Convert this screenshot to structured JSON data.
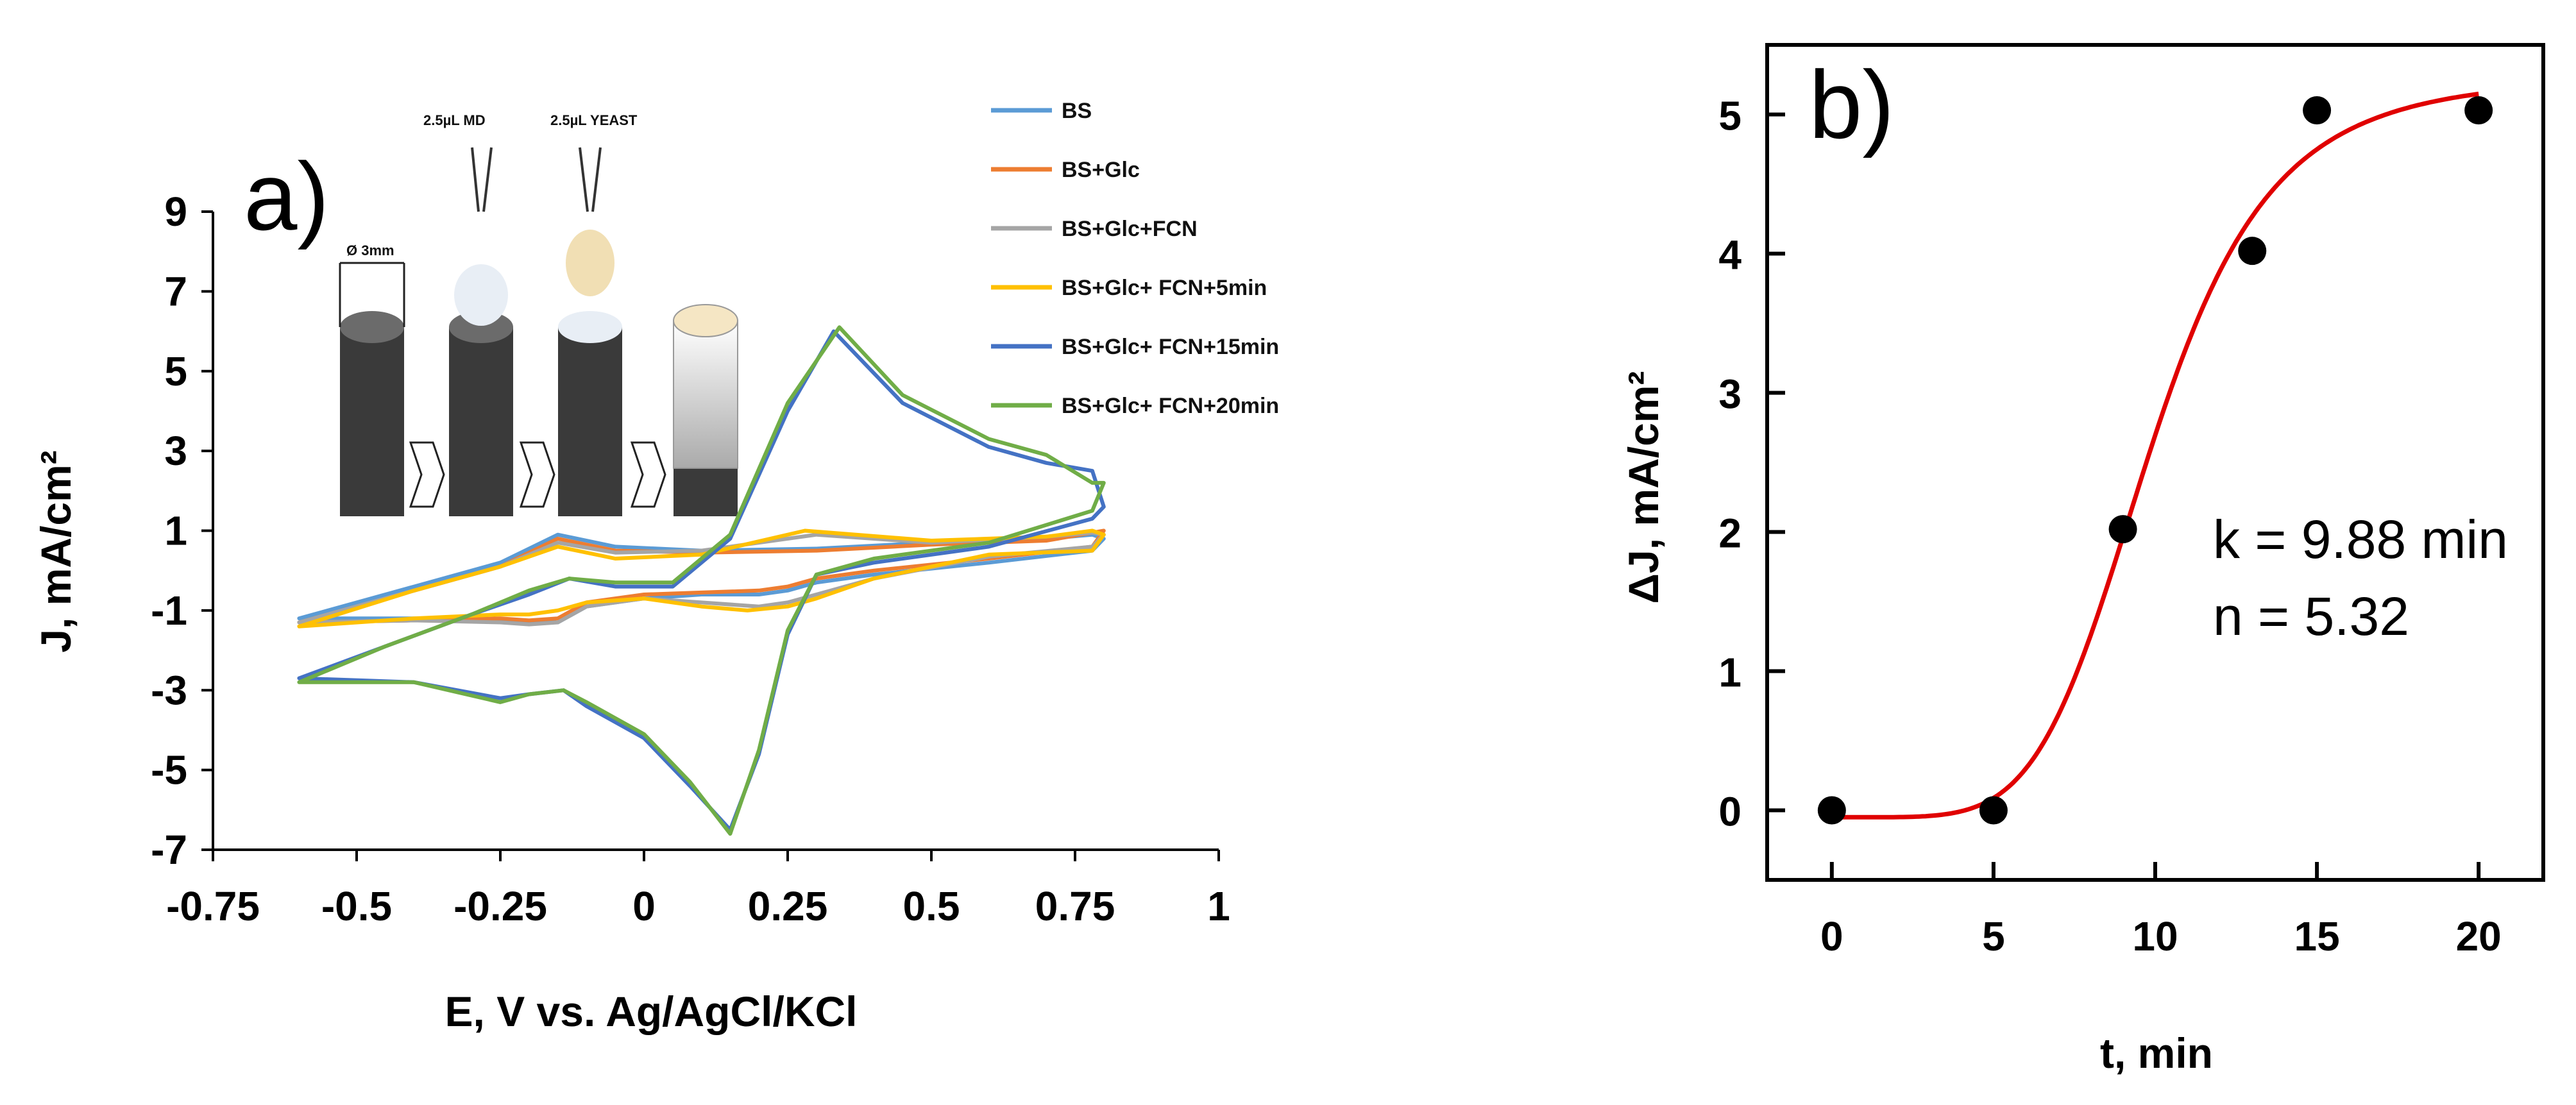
{
  "chart_data": [
    {
      "type": "line",
      "panel_label": "a)",
      "xlabel": "E, V vs. Ag/AgCl/KCl",
      "ylabel": "J, mA/cm²",
      "xlim": [
        -0.75,
        1
      ],
      "ylim": [
        -7,
        9
      ],
      "x_ticks": [
        "-0.75",
        "-0.5",
        "-0.25",
        "0",
        "0.25",
        "0.5",
        "0.75",
        "1"
      ],
      "y_ticks": [
        "9",
        "7",
        "5",
        "3",
        "1",
        "-1",
        "-3",
        "-5",
        "-7"
      ],
      "legend_position": "top-right",
      "series": [
        {
          "name": "BS",
          "color": "#5b9bd5",
          "x": [
            -0.6,
            -0.4,
            -0.25,
            -0.15,
            -0.05,
            0.1,
            0.3,
            0.5,
            0.7,
            0.78,
            0.8,
            0.78,
            0.6,
            0.4,
            0.3,
            0.25,
            0.2,
            0.1,
            0,
            -0.1,
            -0.15,
            -0.2,
            -0.25,
            -0.4,
            -0.6
          ],
          "y": [
            -1.2,
            -0.4,
            0.2,
            0.9,
            0.6,
            0.5,
            0.55,
            0.7,
            0.8,
            0.9,
            0.8,
            0.5,
            0.2,
            -0.1,
            -0.3,
            -0.5,
            -0.6,
            -0.6,
            -0.7,
            -0.9,
            -1.3,
            -1.3,
            -1.25,
            -1.2,
            -1.2
          ]
        },
        {
          "name": "BS+Glc",
          "color": "#ed7d31",
          "x": [
            -0.6,
            -0.4,
            -0.25,
            -0.15,
            -0.05,
            0.1,
            0.3,
            0.5,
            0.7,
            0.78,
            0.8,
            0.78,
            0.6,
            0.4,
            0.3,
            0.25,
            0.2,
            0.1,
            0,
            -0.1,
            -0.15,
            -0.2,
            -0.25,
            -0.4,
            -0.6
          ],
          "y": [
            -1.3,
            -0.5,
            0.1,
            0.8,
            0.5,
            0.45,
            0.5,
            0.65,
            0.75,
            0.95,
            1.0,
            0.6,
            0.3,
            0.0,
            -0.2,
            -0.4,
            -0.5,
            -0.55,
            -0.6,
            -0.8,
            -1.2,
            -1.25,
            -1.2,
            -1.25,
            -1.3
          ]
        },
        {
          "name": "BS+Glc+FCN",
          "color": "#a5a5a5",
          "x": [
            -0.6,
            -0.4,
            -0.25,
            -0.15,
            -0.05,
            0.1,
            0.3,
            0.5,
            0.7,
            0.78,
            0.8,
            0.78,
            0.6,
            0.4,
            0.3,
            0.25,
            0.2,
            0.1,
            0,
            -0.1,
            -0.15,
            -0.2,
            -0.25,
            -0.4,
            -0.6
          ],
          "y": [
            -1.3,
            -0.5,
            0.1,
            0.7,
            0.45,
            0.5,
            0.9,
            0.7,
            0.85,
            0.95,
            0.9,
            0.6,
            0.35,
            -0.2,
            -0.6,
            -0.8,
            -0.9,
            -0.8,
            -0.7,
            -0.9,
            -1.3,
            -1.35,
            -1.3,
            -1.25,
            -1.3
          ]
        },
        {
          "name": "BS+Glc+ FCN+5min",
          "color": "#ffc000",
          "x": [
            -0.6,
            -0.4,
            -0.25,
            -0.15,
            -0.05,
            0.1,
            0.28,
            0.5,
            0.7,
            0.78,
            0.8,
            0.78,
            0.6,
            0.4,
            0.3,
            0.25,
            0.18,
            0.1,
            0,
            -0.1,
            -0.15,
            -0.2,
            -0.25,
            -0.4,
            -0.6
          ],
          "y": [
            -1.4,
            -0.5,
            0.1,
            0.6,
            0.3,
            0.4,
            1.0,
            0.75,
            0.85,
            1.0,
            0.9,
            0.5,
            0.4,
            -0.2,
            -0.7,
            -0.9,
            -1.0,
            -0.9,
            -0.7,
            -0.8,
            -1.0,
            -1.1,
            -1.1,
            -1.2,
            -1.4
          ]
        },
        {
          "name": "BS+Glc+ FCN+15min",
          "color": "#4472c4",
          "x": [
            -0.6,
            -0.45,
            -0.3,
            -0.2,
            -0.13,
            -0.05,
            0.05,
            0.15,
            0.25,
            0.33,
            0.45,
            0.6,
            0.7,
            0.78,
            0.8,
            0.78,
            0.6,
            0.4,
            0.3,
            0.25,
            0.2,
            0.15,
            0.08,
            0,
            -0.1,
            -0.14,
            -0.2,
            -0.25,
            -0.4,
            -0.6
          ],
          "y": [
            -2.7,
            -1.9,
            -1.1,
            -0.6,
            -0.2,
            -0.4,
            -0.4,
            0.8,
            4.0,
            6.0,
            4.2,
            3.1,
            2.7,
            2.5,
            1.6,
            1.3,
            0.6,
            0.2,
            -0.1,
            -1.6,
            -4.6,
            -6.5,
            -5.4,
            -4.2,
            -3.4,
            -3.0,
            -3.1,
            -3.2,
            -2.8,
            -2.7
          ]
        },
        {
          "name": "BS+Glc+ FCN+20min",
          "color": "#70ad47",
          "x": [
            -0.6,
            -0.45,
            -0.3,
            -0.2,
            -0.13,
            -0.05,
            0.05,
            0.15,
            0.25,
            0.34,
            0.45,
            0.6,
            0.7,
            0.78,
            0.8,
            0.78,
            0.6,
            0.4,
            0.3,
            0.25,
            0.2,
            0.15,
            0.08,
            0,
            -0.1,
            -0.14,
            -0.2,
            -0.25,
            -0.4,
            -0.6
          ],
          "y": [
            -2.8,
            -1.9,
            -1.1,
            -0.5,
            -0.2,
            -0.3,
            -0.3,
            0.9,
            4.2,
            6.1,
            4.4,
            3.3,
            2.9,
            2.2,
            2.2,
            1.5,
            0.7,
            0.3,
            -0.1,
            -1.5,
            -4.5,
            -6.6,
            -5.3,
            -4.1,
            -3.3,
            -3.0,
            -3.1,
            -3.3,
            -2.8,
            -2.8
          ]
        }
      ],
      "inset": {
        "labels": [
          "2.5µL MD",
          "2.5µL YEAST",
          "Ø 3mm"
        ]
      }
    },
    {
      "type": "scatter",
      "panel_label": "b)",
      "xlabel": "t, min",
      "ylabel": "ΔJ, mA/cm²",
      "xlim": [
        -2,
        22
      ],
      "ylim": [
        -0.5,
        5.5
      ],
      "x_ticks": [
        "0",
        "5",
        "10",
        "15",
        "20"
      ],
      "y_ticks": [
        "0",
        "1",
        "2",
        "3",
        "4",
        "5"
      ],
      "points": {
        "x": [
          0,
          5,
          9,
          13,
          15,
          20
        ],
        "y": [
          0,
          0,
          2.02,
          4.02,
          5.03,
          5.03
        ],
        "color": "#000000"
      },
      "fit": {
        "color": "#e00000",
        "x_range": [
          0,
          20
        ],
        "model": "Hill: y = y0 + A * t^n / (k^n + t^n)",
        "y0": -0.05,
        "A": 5.32,
        "k": 9.88,
        "n": 5.32
      },
      "annotations": [
        "k = 9.88 min",
        "n = 5.32"
      ]
    }
  ]
}
